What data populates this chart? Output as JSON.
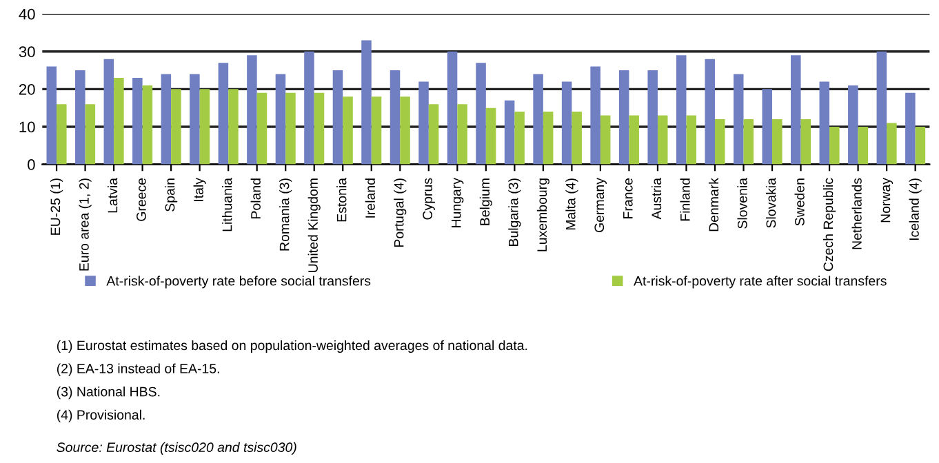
{
  "chart_data": {
    "type": "bar",
    "categories": [
      "EU-25 (1)",
      "Euro area (1, 2)",
      "Latvia",
      "Greece",
      "Spain",
      "Italy",
      "Lithuania",
      "Poland",
      "Romania (3)",
      "United Kingdom",
      "Estonia",
      "Ireland",
      "Portugal (4)",
      "Cyprus",
      "Hungary",
      "Belgium",
      "Bulgaria (3)",
      "Luxembourg",
      "Malta (4)",
      "Germany",
      "France",
      "Austria",
      "Finland",
      "Denmark",
      "Slovenia",
      "Slovakia",
      "Sweden",
      "Czech Republic",
      "Netherlands",
      "Norway",
      "Iceland (4)"
    ],
    "series": [
      {
        "name": "At-risk-of-poverty rate before social transfers",
        "color": "#6f7fc2",
        "values": [
          26,
          25,
          28,
          23,
          24,
          24,
          27,
          29,
          24,
          30,
          25,
          33,
          25,
          22,
          30,
          27,
          17,
          24,
          22,
          26,
          25,
          25,
          29,
          28,
          24,
          20,
          29,
          22,
          21,
          30,
          19
        ]
      },
      {
        "name": "At-risk-of-poverty rate after social transfers",
        "color": "#a3cc44",
        "values": [
          16,
          16,
          23,
          21,
          20,
          20,
          20,
          19,
          19,
          19,
          18,
          18,
          18,
          16,
          16,
          15,
          14,
          14,
          14,
          13,
          13,
          13,
          13,
          12,
          12,
          12,
          12,
          10,
          10,
          11,
          10
        ]
      }
    ],
    "ylim": [
      0,
      40
    ],
    "yticks": [
      0,
      10,
      20,
      30,
      40
    ],
    "grid": "y",
    "legend": "bottom",
    "annotations": [
      "(1) Eurostat estimates based on population-weighted averages of national data.",
      "(2) EA-13 instead of EA-15.",
      "(3) National HBS.",
      "(4) Provisional.",
      "Source: Eurostat (tsisc020 and tsisc030)"
    ]
  }
}
